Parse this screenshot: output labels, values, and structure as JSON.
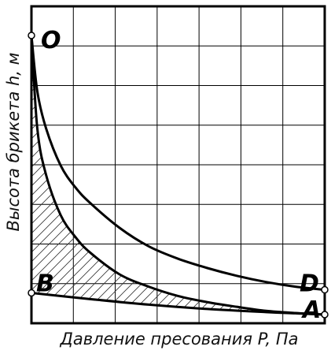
{
  "chart_data": {
    "type": "line",
    "xlabel": "Давление пресования  P, Па",
    "ylabel": "Высота брикета  h, м",
    "xlim": [
      0,
      1
    ],
    "ylim": [
      0,
      1
    ],
    "grid": true,
    "points": [
      {
        "label": "O",
        "x": 0,
        "y": 0.9
      },
      {
        "label": "B",
        "x": 0,
        "y": 0.07
      },
      {
        "label": "D",
        "x": 1,
        "y": 0.08
      },
      {
        "label": "A",
        "x": 1,
        "y": 0.0
      }
    ],
    "series": [
      {
        "x": [
          0,
          0.02,
          0.05,
          0.1,
          0.15,
          0.2,
          0.3,
          0.4,
          0.5,
          0.6,
          0.7,
          0.8,
          0.9,
          1.0
        ],
        "y": [
          0.9,
          0.72,
          0.6,
          0.48,
          0.41,
          0.36,
          0.28,
          0.22,
          0.18,
          0.15,
          0.125,
          0.105,
          0.09,
          0.08
        ]
      },
      {
        "x": [
          0,
          0.02,
          0.05,
          0.1,
          0.15,
          0.2,
          0.3,
          0.4,
          0.5,
          0.6,
          0.7,
          0.8,
          0.9,
          1.0
        ],
        "y": [
          0.9,
          0.6,
          0.45,
          0.32,
          0.25,
          0.2,
          0.13,
          0.09,
          0.06,
          0.04,
          0.025,
          0.012,
          0.005,
          0.0
        ]
      },
      {
        "x": [
          0,
          0.2,
          0.4,
          0.6,
          0.8,
          0.9,
          1.0
        ],
        "y": [
          0.07,
          0.05,
          0.032,
          0.018,
          0.008,
          0.004,
          0.0
        ]
      }
    ],
    "hatched_region": "between curve O–A and line B–A"
  }
}
